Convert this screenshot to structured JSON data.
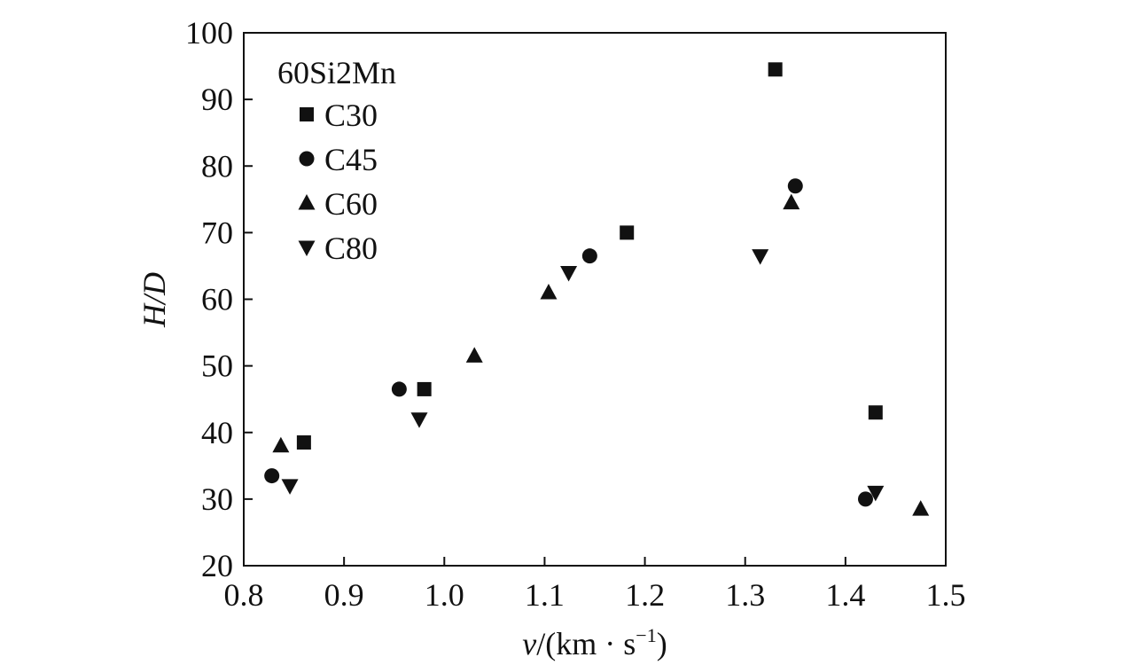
{
  "chart_data": {
    "type": "scatter",
    "title": "",
    "xlabel_italic": "v",
    "xlabel_units": "/(km · s",
    "xlabel_exp": "−1",
    "xlabel_close": ")",
    "ylabel": "H/D",
    "xlim": [
      0.8,
      1.5
    ],
    "ylim": [
      20,
      100
    ],
    "xticks": [
      0.8,
      0.9,
      1.0,
      1.1,
      1.2,
      1.3,
      1.4,
      1.5
    ],
    "xtick_labels": [
      "0.8",
      "0.9",
      "1.0",
      "1.1",
      "1.2",
      "1.3",
      "1.4",
      "1.5"
    ],
    "yticks": [
      20,
      30,
      40,
      50,
      60,
      70,
      80,
      90,
      100
    ],
    "ytick_labels": [
      "20",
      "30",
      "40",
      "50",
      "60",
      "70",
      "80",
      "90",
      "100"
    ],
    "grid": false,
    "legend_title": "60Si2Mn",
    "legend_position": "top-left",
    "series": [
      {
        "name": "C30",
        "marker": "square",
        "points": [
          [
            0.86,
            38.5
          ],
          [
            0.98,
            46.5
          ],
          [
            1.182,
            70.0
          ],
          [
            1.33,
            94.5
          ],
          [
            1.43,
            43.0
          ]
        ]
      },
      {
        "name": "C45",
        "marker": "circle",
        "points": [
          [
            0.828,
            33.5
          ],
          [
            0.955,
            46.5
          ],
          [
            1.145,
            66.5
          ],
          [
            1.35,
            77.0
          ],
          [
            1.42,
            30.0
          ]
        ]
      },
      {
        "name": "C60",
        "marker": "triangle-up",
        "points": [
          [
            0.837,
            38.0
          ],
          [
            1.03,
            51.5
          ],
          [
            1.104,
            61.0
          ],
          [
            1.346,
            74.5
          ],
          [
            1.475,
            28.5
          ]
        ]
      },
      {
        "name": "C80",
        "marker": "triangle-down",
        "points": [
          [
            0.846,
            32.0
          ],
          [
            0.975,
            42.0
          ],
          [
            1.124,
            64.0
          ],
          [
            1.315,
            66.5
          ],
          [
            1.43,
            31.0
          ]
        ]
      }
    ]
  }
}
